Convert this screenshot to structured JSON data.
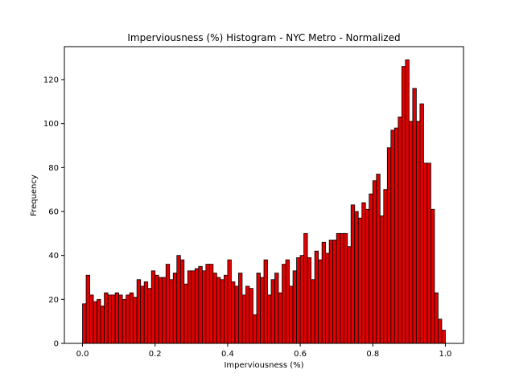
{
  "chart_data": {
    "type": "bar",
    "title": "Imperviousness (%) Histogram - NYC Metro - Normalized",
    "xlabel": "Imperviousness (%)",
    "ylabel": "Frequency",
    "xlim": [
      -0.05,
      1.05
    ],
    "ylim": [
      0,
      135
    ],
    "xticks": [
      "0.0",
      "0.2",
      "0.4",
      "0.6",
      "0.8",
      "1.0"
    ],
    "yticks": [
      "0",
      "20",
      "40",
      "60",
      "80",
      "100",
      "120"
    ],
    "bins": 100,
    "bin_start": 0.0,
    "bin_width": 0.01,
    "bar_color": "#e00000",
    "edge_color": "#000000",
    "values": [
      18,
      31,
      22,
      19,
      20,
      17,
      23,
      22,
      22,
      23,
      22,
      20,
      22,
      23,
      21,
      29,
      26,
      28,
      25,
      33,
      31,
      30,
      30,
      36,
      29,
      32,
      40,
      38,
      27,
      33,
      33,
      34,
      35,
      33,
      36,
      36,
      32,
      30,
      29,
      31,
      38,
      28,
      26,
      32,
      22,
      26,
      25,
      13,
      32,
      30,
      38,
      22,
      29,
      32,
      23,
      36,
      38,
      26,
      33,
      39,
      40,
      50,
      39,
      29,
      42,
      38,
      46,
      41,
      47,
      47,
      50,
      50,
      50,
      44,
      63,
      60,
      57,
      64,
      61,
      68,
      74,
      77,
      58,
      70,
      89,
      97,
      98,
      103,
      126,
      129,
      101,
      116,
      101,
      109,
      82,
      82,
      61,
      23,
      11,
      6
    ]
  }
}
